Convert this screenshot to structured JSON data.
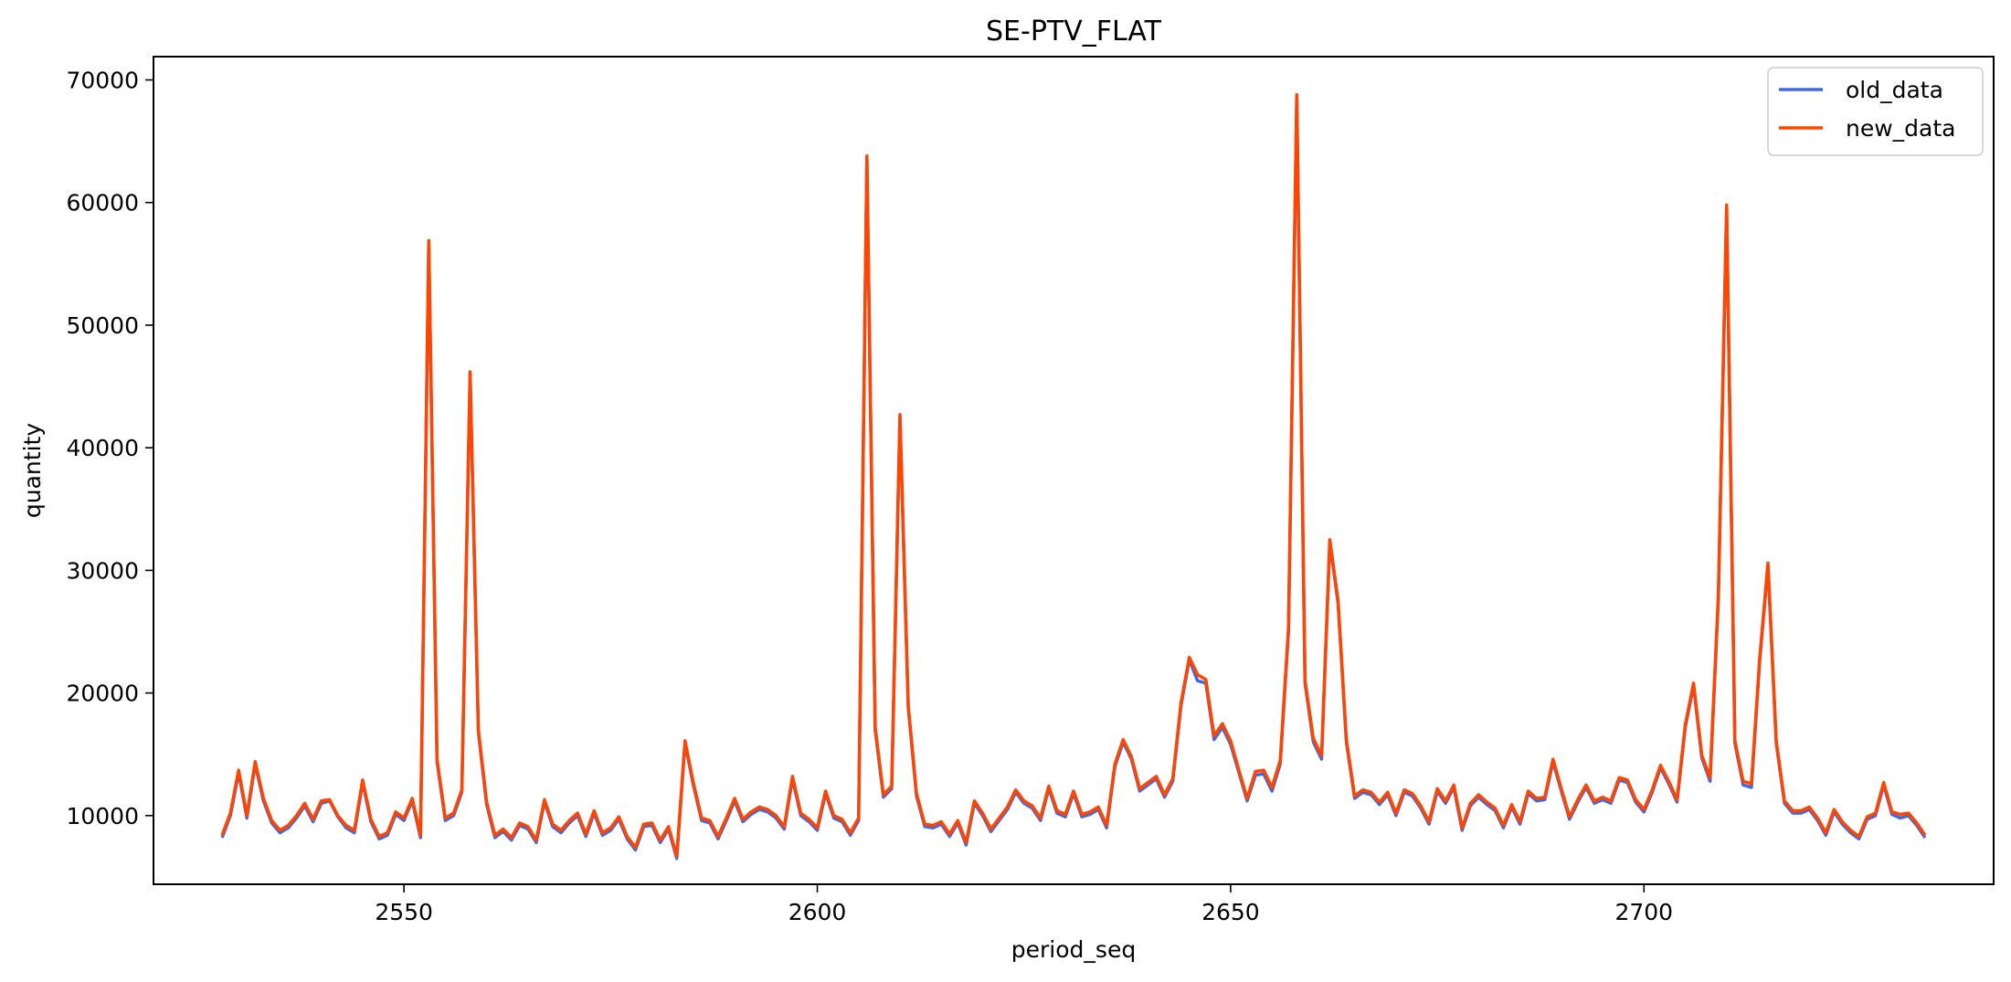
{
  "chart_data": {
    "type": "line",
    "title": "SE-PTV_FLAT",
    "xlabel": "period_seq",
    "ylabel": "quantity",
    "xlim": [
      2519.7,
      2742.3
    ],
    "ylim": [
      4400,
      71900
    ],
    "xticks": [
      2550,
      2600,
      2650,
      2700
    ],
    "xtick_labels": [
      "2550",
      "2600",
      "2650",
      "2700"
    ],
    "yticks": [
      10000,
      20000,
      30000,
      40000,
      50000,
      60000,
      70000
    ],
    "ytick_labels": [
      "10000",
      "20000",
      "30000",
      "40000",
      "50000",
      "60000",
      "70000"
    ],
    "grid": false,
    "legend_position": "top-right",
    "x_start": 2528,
    "series": [
      {
        "name": "old_data",
        "color": "#4169e1",
        "values": [
          8200,
          10000,
          13500,
          9800,
          14200,
          11200,
          9400,
          8600,
          9000,
          9800,
          10800,
          9500,
          11000,
          11200,
          9900,
          9000,
          8600,
          12700,
          9500,
          8100,
          8400,
          10100,
          9600,
          11200,
          8200,
          56700,
          14400,
          9600,
          10000,
          11900,
          46000,
          16800,
          10900,
          8200,
          8700,
          8000,
          9200,
          8900,
          7800,
          11100,
          9100,
          8600,
          9400,
          10000,
          8300,
          10200,
          8400,
          8800,
          9700,
          8100,
          7200,
          9100,
          9200,
          7800,
          8900,
          6500,
          15900,
          12500,
          9600,
          9400,
          8100,
          9600,
          11200,
          9500,
          10100,
          10500,
          10300,
          9800,
          8900,
          13000,
          10000,
          9500,
          8800,
          11800,
          9800,
          9500,
          8400,
          9600,
          63600,
          17000,
          11500,
          12200,
          42500,
          18800,
          11600,
          9100,
          9000,
          9300,
          8300,
          9400,
          7600,
          11000,
          10000,
          8700,
          9600,
          10500,
          11900,
          11000,
          10600,
          9600,
          12200,
          10200,
          9900,
          11800,
          9900,
          10100,
          10500,
          9000,
          14000,
          16000,
          14600,
          12000,
          12500,
          13000,
          11500,
          12800,
          19000,
          22700,
          21000,
          20800,
          16200,
          17200,
          15800,
          13500,
          11200,
          13300,
          13400,
          12000,
          14200,
          25000,
          68600,
          20800,
          16000,
          14600,
          32300,
          27300,
          16000,
          11400,
          11900,
          11700,
          10900,
          11700,
          10000,
          11900,
          11600,
          10600,
          9300,
          12000,
          11000,
          12300,
          8800,
          10800,
          11500,
          10900,
          10400,
          9000,
          10700,
          9300,
          11800,
          11200,
          11300,
          14400,
          12000,
          9700,
          11100,
          12300,
          11000,
          11300,
          11000,
          12900,
          12700,
          11100,
          10300,
          11900,
          13900,
          12600,
          11100,
          17200,
          20600,
          14700,
          12800,
          27700,
          59600,
          15900,
          12500,
          12300,
          22600,
          30400,
          15900,
          11000,
          10200,
          10200,
          10500,
          9600,
          8400,
          10300,
          9300,
          8600,
          8100,
          9700,
          10000,
          12500,
          10100,
          9800,
          10000,
          9200,
          8200
        ]
      },
      {
        "name": "new_data",
        "color": "#ff4500",
        "values": [
          8400,
          10200,
          13700,
          10000,
          14400,
          11400,
          9600,
          8800,
          9200,
          10000,
          11000,
          9700,
          11200,
          11300,
          10000,
          9200,
          8800,
          12900,
          9700,
          8300,
          8600,
          10300,
          9800,
          11400,
          8400,
          56900,
          14600,
          9800,
          10200,
          12100,
          46200,
          17000,
          11100,
          8400,
          8900,
          8200,
          9400,
          9100,
          8000,
          11300,
          9300,
          8800,
          9600,
          10200,
          8500,
          10400,
          8600,
          9000,
          9900,
          8300,
          7400,
          9300,
          9400,
          8000,
          9100,
          6700,
          16100,
          12700,
          9800,
          9600,
          8300,
          9800,
          11400,
          9700,
          10300,
          10700,
          10500,
          10000,
          9100,
          13200,
          10200,
          9700,
          9000,
          12000,
          10000,
          9700,
          8600,
          9800,
          63800,
          17200,
          11700,
          12400,
          42700,
          19000,
          11800,
          9300,
          9200,
          9500,
          8500,
          9600,
          7800,
          11200,
          10200,
          8900,
          9800,
          10700,
          12100,
          11200,
          10800,
          9800,
          12400,
          10400,
          10100,
          12000,
          10100,
          10300,
          10700,
          9200,
          14200,
          16200,
          14800,
          12200,
          12700,
          13200,
          11700,
          13000,
          19200,
          22900,
          21500,
          21100,
          16500,
          17500,
          16100,
          13700,
          11400,
          13600,
          13700,
          12300,
          14500,
          25300,
          68800,
          21000,
          16300,
          14900,
          32500,
          27500,
          16200,
          11600,
          12100,
          11900,
          11100,
          11900,
          10200,
          12100,
          11800,
          10800,
          9500,
          12200,
          11200,
          12500,
          9000,
          11000,
          11700,
          11100,
          10600,
          9200,
          10900,
          9500,
          12000,
          11400,
          11500,
          14600,
          12200,
          9900,
          11300,
          12500,
          11200,
          11500,
          11200,
          13100,
          12900,
          11300,
          10500,
          12100,
          14100,
          12800,
          11300,
          17400,
          20800,
          14900,
          13100,
          27900,
          59800,
          16100,
          12800,
          12600,
          22800,
          30600,
          16100,
          11200,
          10400,
          10400,
          10700,
          9800,
          8600,
          10500,
          9500,
          8800,
          8300,
          9900,
          10200,
          12700,
          10300,
          10100,
          10200,
          9400,
          8400
        ]
      }
    ]
  }
}
